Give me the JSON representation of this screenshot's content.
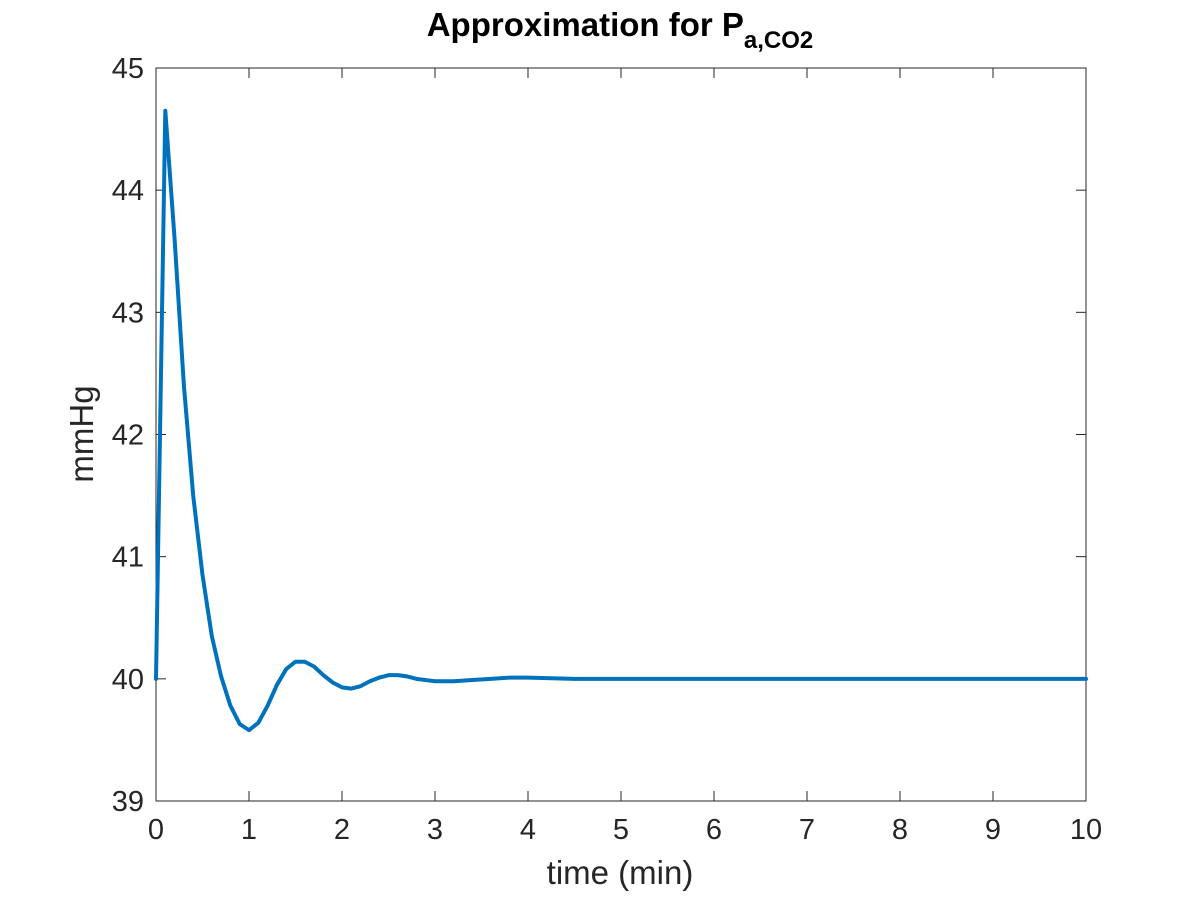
{
  "chart_data": {
    "type": "line",
    "title": "Approximation for P",
    "title_subscript": "a,CO2",
    "xlabel": "time (min)",
    "ylabel": "mmHg",
    "xlim": [
      0,
      10
    ],
    "ylim": [
      39,
      45
    ],
    "xticks": [
      0,
      1,
      2,
      3,
      4,
      5,
      6,
      7,
      8,
      9,
      10
    ],
    "yticks": [
      39,
      40,
      41,
      42,
      43,
      44,
      45
    ],
    "xtick_labels": [
      "0",
      "1",
      "2",
      "3",
      "4",
      "5",
      "6",
      "7",
      "8",
      "9",
      "10"
    ],
    "ytick_labels": [
      "39",
      "40",
      "41",
      "42",
      "43",
      "44",
      "45"
    ],
    "grid": false,
    "legend": "none",
    "colors": {
      "line": "#0072BD",
      "axis": "#262626",
      "background": "#ffffff"
    },
    "series": [
      {
        "x": [
          0,
          0.1,
          0.2,
          0.3,
          0.4,
          0.5,
          0.6,
          0.7,
          0.8,
          0.9,
          1.0,
          1.1,
          1.2,
          1.3,
          1.4,
          1.5,
          1.6,
          1.7,
          1.8,
          1.9,
          2.0,
          2.1,
          2.2,
          2.3,
          2.4,
          2.5,
          2.6,
          2.7,
          2.8,
          2.9,
          3.0,
          3.2,
          3.4,
          3.6,
          3.8,
          4.0,
          4.5,
          5.0,
          5.5,
          6.0,
          6.5,
          7.0,
          7.5,
          8.0,
          8.5,
          9.0,
          9.5,
          10.0
        ],
        "y": [
          40.0,
          44.65,
          43.6,
          42.4,
          41.5,
          40.85,
          40.35,
          40.02,
          39.78,
          39.63,
          39.58,
          39.64,
          39.78,
          39.95,
          40.08,
          40.14,
          40.14,
          40.1,
          40.03,
          39.97,
          39.93,
          39.92,
          39.94,
          39.98,
          40.01,
          40.03,
          40.03,
          40.02,
          40.0,
          39.99,
          39.98,
          39.98,
          39.99,
          40.0,
          40.01,
          40.01,
          40.0,
          40.0,
          40.0,
          40.0,
          40.0,
          40.0,
          40.0,
          40.0,
          40.0,
          40.0,
          40.0,
          40.0
        ]
      }
    ]
  }
}
